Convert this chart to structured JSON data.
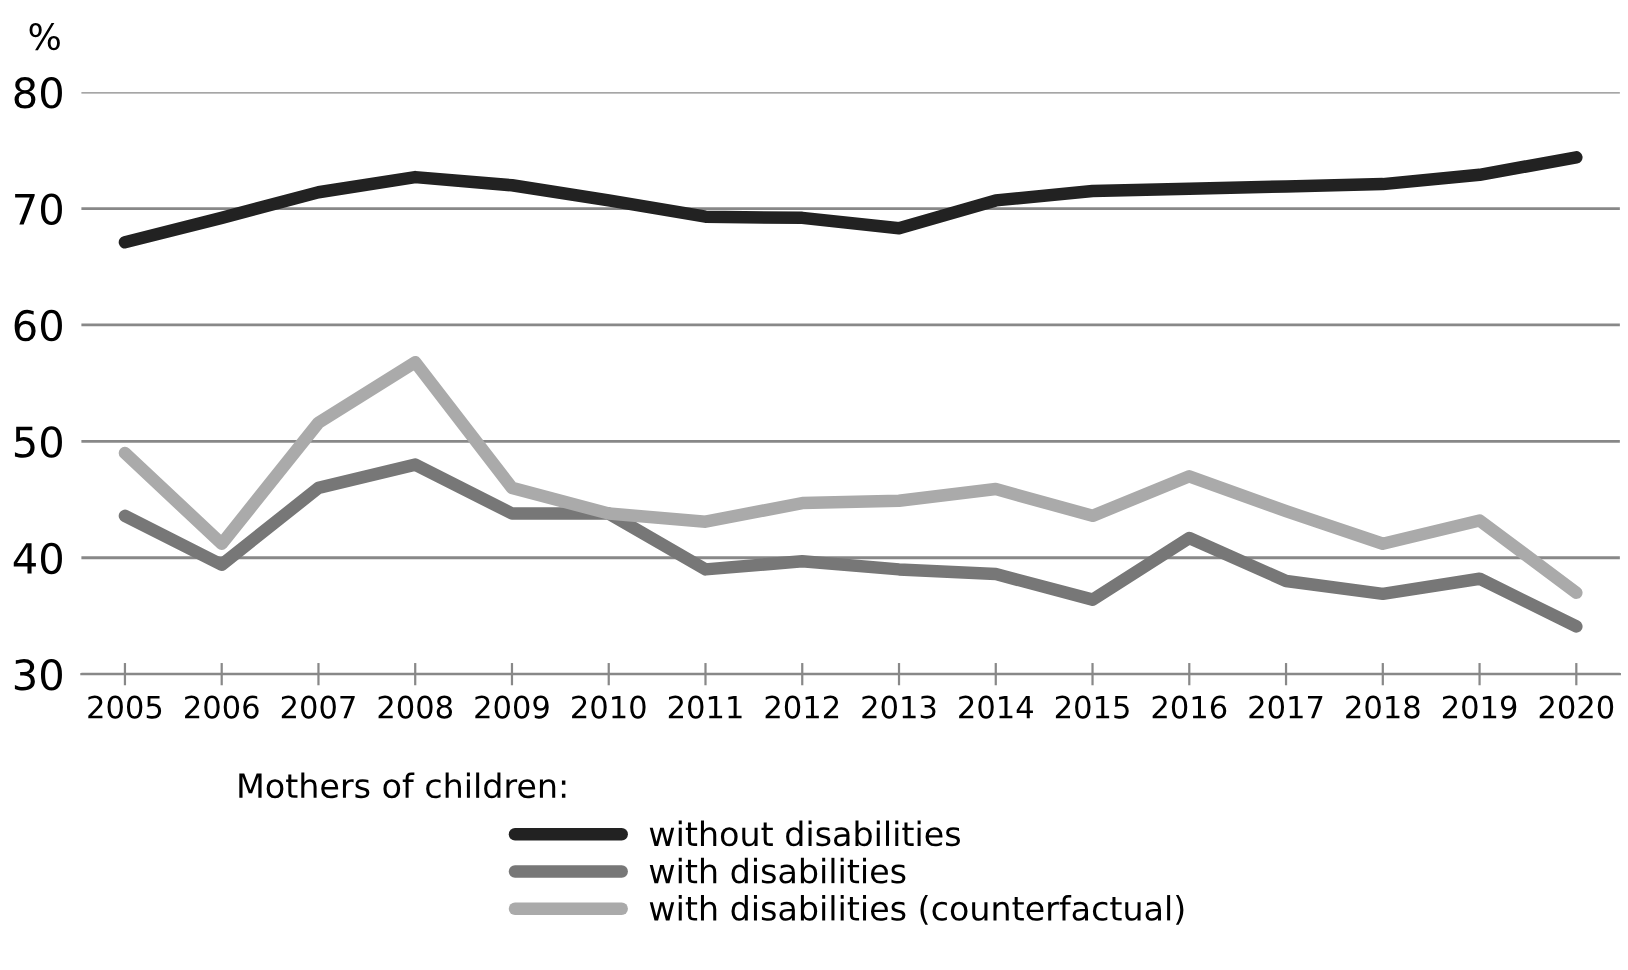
{
  "chart_data": {
    "type": "line",
    "ylabel": "%",
    "legend_title": "Mothers of children:",
    "legend": "bottom",
    "grid": "y",
    "line_style": "solid",
    "marker": "none",
    "categories": [
      "2005",
      "2006",
      "2007",
      "2008",
      "2009",
      "2010",
      "2011",
      "2012",
      "2013",
      "2014",
      "2015",
      "2016",
      "2017",
      "2018",
      "2019",
      "2020"
    ],
    "ylim": [
      30,
      80
    ],
    "yticks": [
      30,
      40,
      50,
      60,
      70,
      80
    ],
    "series": [
      {
        "name": "without disabilities",
        "color": "#222222",
        "values": [
          67.1,
          69.2,
          71.4,
          72.7,
          72.0,
          70.7,
          69.3,
          69.2,
          68.3,
          70.7,
          71.5,
          71.7,
          71.9,
          72.1,
          72.9,
          74.4
        ]
      },
      {
        "name": "with disabilities",
        "color": "#777777",
        "values": [
          43.6,
          39.4,
          46.0,
          48.0,
          43.8,
          43.8,
          39.0,
          39.7,
          39.0,
          38.6,
          36.4,
          41.7,
          38.0,
          36.9,
          38.2,
          34.1
        ]
      },
      {
        "name": "with disabilities (counterfactual)",
        "color": "#aaaaaa",
        "values": [
          49.0,
          41.2,
          51.6,
          56.8,
          46.0,
          43.8,
          43.1,
          44.7,
          44.9,
          45.9,
          43.6,
          47.0,
          44.0,
          41.2,
          43.2,
          37.0
        ]
      }
    ]
  }
}
